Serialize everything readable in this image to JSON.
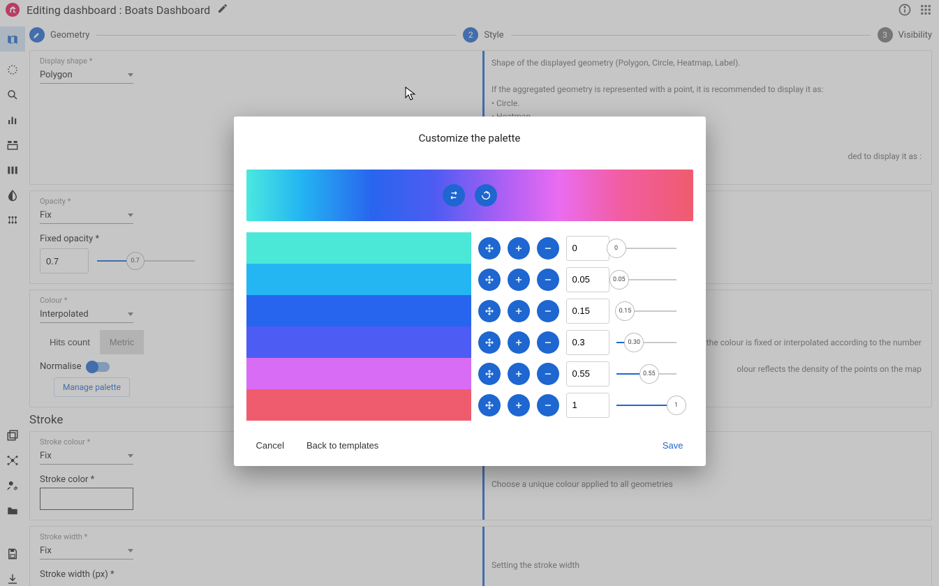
{
  "topbar": {
    "title": "Editing dashboard : Boats Dashboard"
  },
  "stepper": {
    "step1": {
      "icon": "✎",
      "label": "Geometry"
    },
    "step2": {
      "num": "2",
      "label": "Style"
    },
    "step3": {
      "num": "3",
      "label": "Visibility"
    }
  },
  "panels": {
    "display_shape": {
      "label": "Display shape *",
      "value": "Polygon",
      "help1": "Shape of the displayed geometry (Polygon, Circle, Heatmap, Label).",
      "help2": "If the aggregated geometry is represented with a point, it is recommended to display it as:",
      "bullet1": "• Circle.",
      "bullet2": "• Heatmap.",
      "help3": "ded to display it as :"
    },
    "opacity": {
      "label": "Opacity *",
      "value": "Fix",
      "fixed_label": "Fixed opacity *",
      "fixed_value": "0.7",
      "slider_value": "0.7",
      "slider_percent": 70
    },
    "colour": {
      "label": "Colour *",
      "value": "Interpolated",
      "hits_label": "Hits count",
      "metric_label": "Metric",
      "normalise_label": "Normalise",
      "manage_palette": "Manage palette",
      "help1": "or Label, the colour is fixed or interpolated according to the number",
      "help2": "olour reflects the density of the points on the map"
    },
    "stroke": {
      "title": "Stroke",
      "colour_label": "Stroke colour *",
      "colour_value": "Fix",
      "color_field_label": "Stroke color *",
      "help_colour": "Choose a unique colour applied to all geometries",
      "width_label": "Stroke width *",
      "width_value": "Fix",
      "width_px_label": "Stroke width (px) *",
      "help_width": "Setting the stroke width"
    }
  },
  "modal": {
    "title": "Customize the palette",
    "gradient_css": "linear-gradient(90deg,#4be8e0 0%,#24b6f2 12%,#2865ee 28%,#4d5cf2 42%,#af60f5 58%,#ea6cf0 70%,#f25da0 84%,#ef5c6e 100%)",
    "stops": [
      {
        "color": "#4be8d8",
        "value": "0",
        "thumb": "0",
        "percent": 0
      },
      {
        "color": "#24b6f2",
        "value": "0.05",
        "thumb": "0.05",
        "percent": 5
      },
      {
        "color": "#2865ee",
        "value": "0.15",
        "thumb": "0.15",
        "percent": 15
      },
      {
        "color": "#4d5cf2",
        "value": "0.3",
        "thumb": "0.30",
        "percent": 30
      },
      {
        "color": "#d96cf5",
        "value": "0.55",
        "thumb": "0.55",
        "percent": 55
      },
      {
        "color": "#ef5c6e",
        "value": "1",
        "thumb": "1",
        "percent": 100
      }
    ],
    "cancel": "Cancel",
    "back": "Back to templates",
    "save": "Save"
  }
}
